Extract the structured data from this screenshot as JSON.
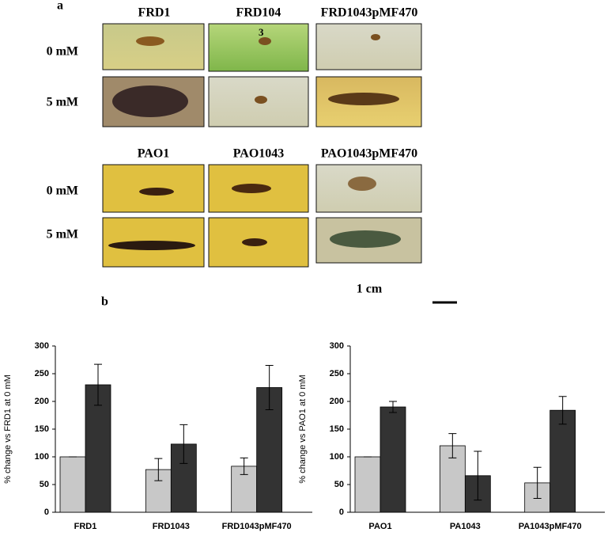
{
  "panel_a": {
    "label": "a",
    "top_columns": [
      "FRD1",
      "FRD104",
      "FRD1043pMF470"
    ],
    "top_overlay": "3",
    "bottom_columns": [
      "PAO1",
      "PAO1043",
      "PAO1043pMF470"
    ],
    "rows": [
      "0 mM",
      "5 mM"
    ],
    "scale": "1 cm"
  },
  "panel_b": {
    "label": "b"
  },
  "chart_data": [
    {
      "type": "bar",
      "ylabel": "% change vs FRD1 at 0 mM",
      "categories": [
        "FRD1",
        "FRD1043",
        "FRD1043pMF470"
      ],
      "series": [
        {
          "color": "#c8c8c8",
          "values": [
            100,
            77,
            83
          ],
          "errors": [
            0,
            20,
            15
          ]
        },
        {
          "color": "#333333",
          "values": [
            230,
            123,
            225
          ],
          "errors": [
            37,
            35,
            40
          ]
        }
      ],
      "ylim": [
        0,
        300
      ],
      "yticks": [
        0,
        50,
        100,
        150,
        200,
        250,
        300
      ]
    },
    {
      "type": "bar",
      "ylabel": "% change vs PAO1 at 0 mM",
      "categories": [
        "PAO1",
        "PA1043",
        "PA1043pMF470"
      ],
      "series": [
        {
          "color": "#c8c8c8",
          "values": [
            100,
            120,
            53
          ],
          "errors": [
            0,
            22,
            28
          ]
        },
        {
          "color": "#333333",
          "values": [
            190,
            66,
            184
          ],
          "errors": [
            10,
            44,
            25
          ]
        }
      ],
      "ylim": [
        0,
        300
      ],
      "yticks": [
        0,
        50,
        100,
        150,
        200,
        250,
        300
      ]
    }
  ]
}
